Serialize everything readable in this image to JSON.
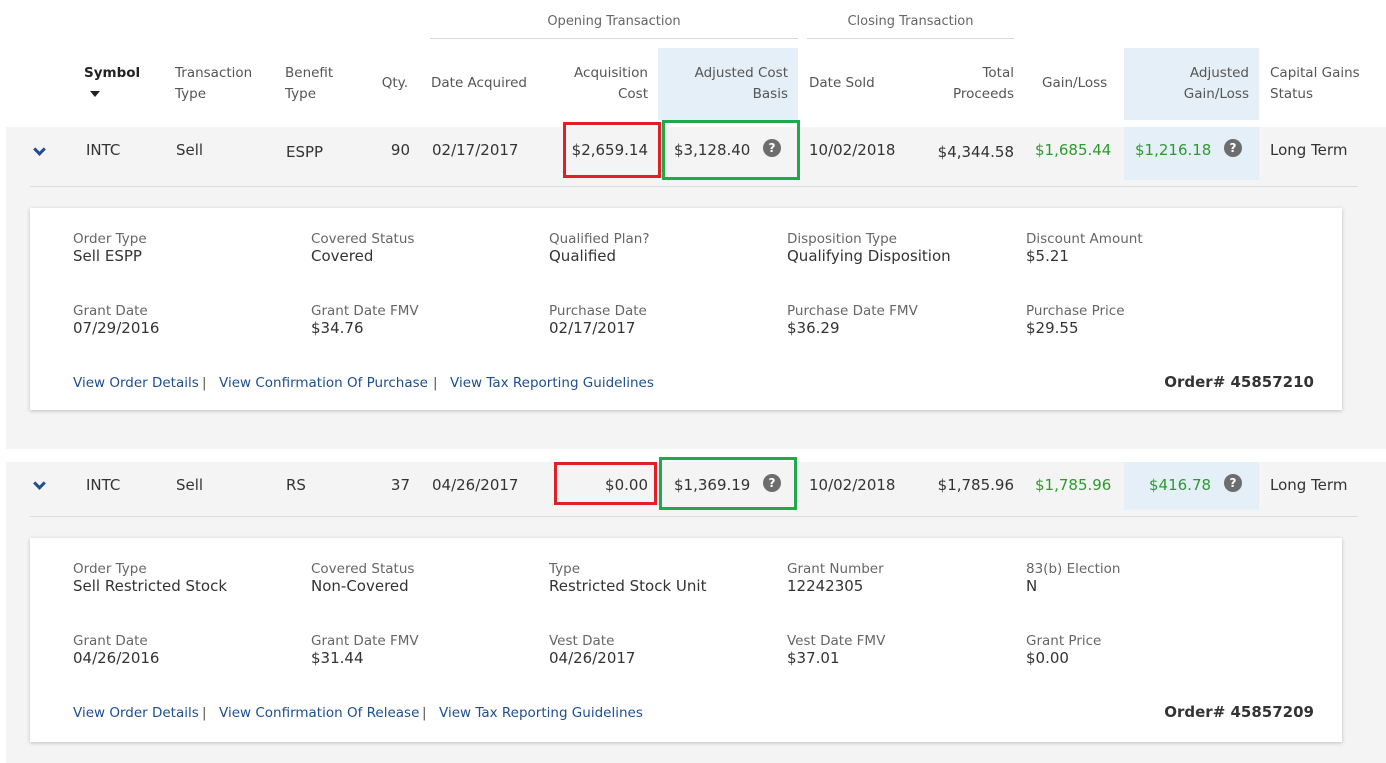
{
  "header": {
    "groups": {
      "opening": "Opening Transaction",
      "closing": "Closing Transaction"
    },
    "columns": {
      "symbol": "Symbol",
      "transaction_type": [
        "Transaction",
        "Type"
      ],
      "benefit_type": [
        "Benefit",
        "Type"
      ],
      "qty": "Qty.",
      "date_acquired": "Date Acquired",
      "acquisition_cost": [
        "Acquisition",
        "Cost"
      ],
      "adjusted_cost_basis": [
        "Adjusted Cost",
        "Basis"
      ],
      "date_sold": "Date Sold",
      "total_proceeds": [
        "Total",
        "Proceeds"
      ],
      "gain_loss": "Gain/Loss",
      "adjusted_gain_loss": [
        "Adjusted",
        "Gain/Loss"
      ],
      "capital_gains_status": [
        "Capital Gains",
        "Status"
      ]
    }
  },
  "rows": [
    {
      "symbol": "INTC",
      "transaction_type": "Sell",
      "benefit_type": "ESPP",
      "qty": "90",
      "date_acquired": "02/17/2017",
      "acquisition_cost": "$2,659.14",
      "adjusted_cost_basis": "$3,128.40",
      "date_sold": "10/02/2018",
      "total_proceeds": "$4,344.58",
      "gain_loss": "$1,685.44",
      "adjusted_gain_loss": "$1,216.18",
      "capital_gains_status": "Long Term",
      "details": [
        {
          "label": "Order Type",
          "value": "Sell ESPP"
        },
        {
          "label": "Covered Status",
          "value": "Covered"
        },
        {
          "label": "Qualified Plan?",
          "value": "Qualified"
        },
        {
          "label": "Disposition Type",
          "value": "Qualifying Disposition"
        },
        {
          "label": "Discount Amount",
          "value": "$5.21"
        },
        {
          "label": "Grant Date",
          "value": "07/29/2016"
        },
        {
          "label": "Grant Date FMV",
          "value": "$34.76"
        },
        {
          "label": "Purchase Date",
          "value": "02/17/2017"
        },
        {
          "label": "Purchase Date FMV",
          "value": "$36.29"
        },
        {
          "label": "Purchase Price",
          "value": "$29.55"
        }
      ],
      "links": [
        "View Order Details",
        "View Confirmation Of Purchase",
        "View Tax Reporting Guidelines"
      ],
      "separator": "|",
      "order": "Order# 45857210"
    },
    {
      "symbol": "INTC",
      "transaction_type": "Sell",
      "benefit_type": "RS",
      "qty": "37",
      "date_acquired": "04/26/2017",
      "acquisition_cost": "$0.00",
      "adjusted_cost_basis": "$1,369.19",
      "date_sold": "10/02/2018",
      "total_proceeds": "$1,785.96",
      "gain_loss": "$1,785.96",
      "adjusted_gain_loss": "$416.78",
      "capital_gains_status": "Long Term",
      "details": [
        {
          "label": "Order Type",
          "value": "Sell Restricted Stock"
        },
        {
          "label": "Covered Status",
          "value": "Non-Covered"
        },
        {
          "label": "Type",
          "value": "Restricted Stock Unit"
        },
        {
          "label": "Grant Number",
          "value": "12242305"
        },
        {
          "label": "83(b) Election",
          "value": "N"
        },
        {
          "label": "Grant Date",
          "value": "04/26/2016"
        },
        {
          "label": "Grant Date FMV",
          "value": "$31.44"
        },
        {
          "label": "Vest Date",
          "value": "04/26/2017"
        },
        {
          "label": "Vest Date FMV",
          "value": "$37.01"
        },
        {
          "label": "Grant Price",
          "value": "$0.00"
        }
      ],
      "links": [
        "View Order Details",
        "View Confirmation Of Release",
        "View Tax Reporting Guidelines"
      ],
      "separator": "|",
      "order": "Order# 45857209"
    }
  ],
  "icons": {
    "help": "question-circle-icon",
    "expand": "chevron-down-icon",
    "sort": "caret-down-icon"
  },
  "colors": {
    "gain_green": "#2e9a2e",
    "link_blue": "#1e4f8e",
    "highlight_blue": "#e4eff7",
    "annotation_red": "#e01f26",
    "annotation_green": "#21a84a"
  },
  "help_glyph": "?"
}
